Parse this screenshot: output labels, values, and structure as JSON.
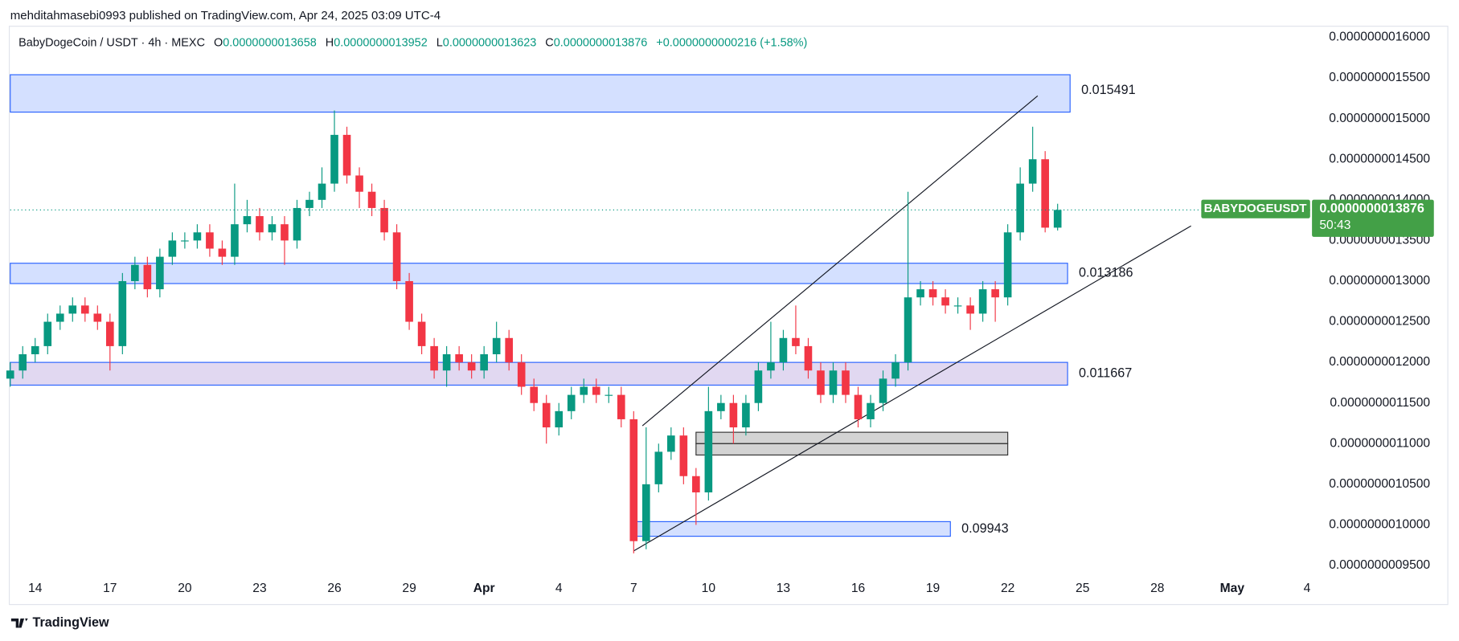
{
  "header": {
    "publisher_line": "mehditahmasebi0993 published on TradingView.com, Apr 24, 2025 03:09 UTC-4"
  },
  "footer": {
    "brand": "TradingView"
  },
  "chart_data": {
    "type": "candlestick",
    "title": "BabyDogeCoin / USDT · 4h · MEXC",
    "ohlc": [
      {
        "name": "O",
        "value_label": "0.0000000013658"
      },
      {
        "name": "H",
        "value_label": "0.0000000013952"
      },
      {
        "name": "L",
        "value_label": "0.0000000013623"
      },
      {
        "name": "C",
        "value_label": "0.0000000013876"
      }
    ],
    "change_label": "+0.0000000000216 (+1.58%)",
    "ticker_label": "BABYDOGEUSDT",
    "last_price_label": "0.0000000013876",
    "countdown_label": "50:43",
    "up_color": "#089981",
    "down_color": "#f23645",
    "label_color": "#43a047",
    "grid": false,
    "x": [
      0,
      0.5,
      1,
      1.5,
      2,
      2.5,
      3,
      3.5,
      4,
      4.5,
      5,
      5.5,
      6,
      6.5,
      7,
      7.5,
      8,
      8.5,
      9,
      9.5,
      10,
      10.5,
      11,
      11.5,
      12,
      12.5,
      13,
      13.5,
      14,
      14.5,
      15,
      15.5,
      16,
      16.5,
      17,
      17.5,
      18,
      18.5,
      19,
      19.5,
      20,
      20.5,
      21,
      21.5,
      22,
      22.5,
      23,
      23.5,
      24,
      24.5,
      25,
      25.5,
      26,
      26.5,
      27,
      27.5,
      28,
      28.5,
      29,
      29.5,
      30,
      30.5,
      31,
      31.5,
      32,
      32.5,
      33,
      33.5,
      34,
      34.5,
      35,
      35.5,
      36,
      36.5,
      37,
      37.5,
      38,
      38.5,
      39,
      39.5,
      40,
      40.5,
      41,
      41.5,
      42
    ],
    "open": [
      1.18e-09,
      1.19e-09,
      1.21e-09,
      1.22e-09,
      1.25e-09,
      1.26e-09,
      1.27e-09,
      1.26e-09,
      1.25e-09,
      1.22e-09,
      1.3e-09,
      1.32e-09,
      1.29e-09,
      1.33e-09,
      1.35e-09,
      1.35e-09,
      1.36e-09,
      1.34e-09,
      1.33e-09,
      1.37e-09,
      1.38e-09,
      1.36e-09,
      1.37e-09,
      1.35e-09,
      1.39e-09,
      1.4e-09,
      1.42e-09,
      1.48e-09,
      1.43e-09,
      1.41e-09,
      1.39e-09,
      1.36e-09,
      1.3e-09,
      1.25e-09,
      1.22e-09,
      1.19e-09,
      1.21e-09,
      1.2e-09,
      1.19e-09,
      1.21e-09,
      1.23e-09,
      1.2e-09,
      1.17e-09,
      1.15e-09,
      1.12e-09,
      1.14e-09,
      1.16e-09,
      1.17e-09,
      1.16e-09,
      1.16e-09,
      1.13e-09,
      9.8e-10,
      1.05e-09,
      1.09e-09,
      1.11e-09,
      1.06e-09,
      1.04e-09,
      1.14e-09,
      1.15e-09,
      1.12e-09,
      1.15e-09,
      1.19e-09,
      1.2e-09,
      1.23e-09,
      1.22e-09,
      1.19e-09,
      1.16e-09,
      1.19e-09,
      1.16e-09,
      1.13e-09,
      1.15e-09,
      1.18e-09,
      1.2e-09,
      1.28e-09,
      1.29e-09,
      1.28e-09,
      1.27e-09,
      1.27e-09,
      1.26e-09,
      1.29e-09,
      1.28e-09,
      1.36e-09,
      1.42e-09,
      1.45e-09,
      1.3658e-09
    ],
    "high": [
      1.2e-09,
      1.22e-09,
      1.23e-09,
      1.26e-09,
      1.27e-09,
      1.28e-09,
      1.28e-09,
      1.27e-09,
      1.26e-09,
      1.31e-09,
      1.33e-09,
      1.33e-09,
      1.34e-09,
      1.36e-09,
      1.36e-09,
      1.37e-09,
      1.37e-09,
      1.35e-09,
      1.42e-09,
      1.4e-09,
      1.39e-09,
      1.38e-09,
      1.38e-09,
      1.4e-09,
      1.41e-09,
      1.44e-09,
      1.51e-09,
      1.49e-09,
      1.44e-09,
      1.42e-09,
      1.4e-09,
      1.37e-09,
      1.31e-09,
      1.26e-09,
      1.23e-09,
      1.22e-09,
      1.22e-09,
      1.21e-09,
      1.22e-09,
      1.25e-09,
      1.24e-09,
      1.21e-09,
      1.18e-09,
      1.16e-09,
      1.15e-09,
      1.17e-09,
      1.18e-09,
      1.18e-09,
      1.17e-09,
      1.17e-09,
      1.14e-09,
      1.12e-09,
      1.1e-09,
      1.12e-09,
      1.12e-09,
      1.07e-09,
      1.17e-09,
      1.16e-09,
      1.16e-09,
      1.16e-09,
      1.2e-09,
      1.25e-09,
      1.24e-09,
      1.27e-09,
      1.23e-09,
      1.2e-09,
      1.2e-09,
      1.2e-09,
      1.17e-09,
      1.16e-09,
      1.19e-09,
      1.21e-09,
      1.41e-09,
      1.3e-09,
      1.3e-09,
      1.29e-09,
      1.28e-09,
      1.28e-09,
      1.3e-09,
      1.3e-09,
      1.37e-09,
      1.44e-09,
      1.49e-09,
      1.46e-09,
      1.3952e-09
    ],
    "low": [
      1.17e-09,
      1.18e-09,
      1.2e-09,
      1.21e-09,
      1.24e-09,
      1.25e-09,
      1.25e-09,
      1.24e-09,
      1.19e-09,
      1.21e-09,
      1.29e-09,
      1.28e-09,
      1.28e-09,
      1.32e-09,
      1.34e-09,
      1.34e-09,
      1.33e-09,
      1.32e-09,
      1.32e-09,
      1.36e-09,
      1.35e-09,
      1.35e-09,
      1.32e-09,
      1.34e-09,
      1.38e-09,
      1.39e-09,
      1.41e-09,
      1.42e-09,
      1.39e-09,
      1.38e-09,
      1.35e-09,
      1.29e-09,
      1.24e-09,
      1.21e-09,
      1.18e-09,
      1.17e-09,
      1.19e-09,
      1.18e-09,
      1.18e-09,
      1.2e-09,
      1.19e-09,
      1.16e-09,
      1.14e-09,
      1.1e-09,
      1.11e-09,
      1.13e-09,
      1.15e-09,
      1.15e-09,
      1.15e-09,
      1.12e-09,
      9.65e-10,
      9.7e-10,
      1.04e-09,
      1.08e-09,
      1.05e-09,
      1e-09,
      1.03e-09,
      1.13e-09,
      1.1e-09,
      1.11e-09,
      1.14e-09,
      1.18e-09,
      1.19e-09,
      1.21e-09,
      1.18e-09,
      1.15e-09,
      1.15e-09,
      1.15e-09,
      1.12e-09,
      1.12e-09,
      1.14e-09,
      1.17e-09,
      1.19e-09,
      1.27e-09,
      1.27e-09,
      1.26e-09,
      1.26e-09,
      1.24e-09,
      1.25e-09,
      1.25e-09,
      1.27e-09,
      1.35e-09,
      1.41e-09,
      1.36e-09,
      1.3623e-09
    ],
    "close": [
      1.19e-09,
      1.21e-09,
      1.22e-09,
      1.25e-09,
      1.26e-09,
      1.27e-09,
      1.26e-09,
      1.25e-09,
      1.22e-09,
      1.3e-09,
      1.32e-09,
      1.29e-09,
      1.33e-09,
      1.35e-09,
      1.35e-09,
      1.36e-09,
      1.34e-09,
      1.33e-09,
      1.37e-09,
      1.38e-09,
      1.36e-09,
      1.37e-09,
      1.35e-09,
      1.39e-09,
      1.4e-09,
      1.42e-09,
      1.48e-09,
      1.43e-09,
      1.41e-09,
      1.39e-09,
      1.36e-09,
      1.3e-09,
      1.25e-09,
      1.22e-09,
      1.19e-09,
      1.21e-09,
      1.2e-09,
      1.19e-09,
      1.21e-09,
      1.23e-09,
      1.2e-09,
      1.17e-09,
      1.15e-09,
      1.12e-09,
      1.14e-09,
      1.16e-09,
      1.17e-09,
      1.16e-09,
      1.16e-09,
      1.13e-09,
      9.8e-10,
      1.05e-09,
      1.09e-09,
      1.11e-09,
      1.06e-09,
      1.04e-09,
      1.14e-09,
      1.15e-09,
      1.12e-09,
      1.15e-09,
      1.19e-09,
      1.2e-09,
      1.23e-09,
      1.22e-09,
      1.19e-09,
      1.16e-09,
      1.19e-09,
      1.16e-09,
      1.13e-09,
      1.15e-09,
      1.18e-09,
      1.2e-09,
      1.28e-09,
      1.29e-09,
      1.28e-09,
      1.27e-09,
      1.27e-09,
      1.26e-09,
      1.29e-09,
      1.28e-09,
      1.36e-09,
      1.42e-09,
      1.45e-09,
      1.3658e-09,
      1.3876e-09
    ],
    "zones": [
      {
        "label": "0.015491",
        "low": 1.508e-09,
        "high": 1.554e-09,
        "x_start": 0,
        "x_end": 42.5,
        "color": "#2962ff"
      },
      {
        "label": "0.013186",
        "low": 1.297e-09,
        "high": 1.322e-09,
        "x_start": 0,
        "x_end": 42.4,
        "color": "#2962ff"
      },
      {
        "label": "0.011667",
        "low": 1.172e-09,
        "high": 1.2e-09,
        "x_start": 0,
        "x_end": 42.4,
        "color": "#673ab7"
      },
      {
        "label": "0.09943",
        "low": 9.86e-10,
        "high": 1.004e-09,
        "x_start": 25,
        "x_end": 37.7,
        "color": "#2962ff"
      },
      {
        "low": 1.1e-09,
        "high": 1.114e-09,
        "x_start": 27.5,
        "x_end": 40,
        "color": "#9e9e9e"
      },
      {
        "low": 1.086e-09,
        "high": 1.1e-09,
        "x_start": 27.5,
        "x_end": 40,
        "color": "#9e9e9e"
      }
    ],
    "trend_lines": [
      {
        "x": [
          25.35,
          41.2
        ],
        "y": [
          1.122e-09,
          1.528e-09
        ]
      },
      {
        "x": [
          25,
          47.35
        ],
        "y": [
          9.68e-10,
          1.368e-09
        ]
      }
    ],
    "xlim": [
      0,
      52.2
    ],
    "ylim": [
      9.34e-10,
      1.6137e-09
    ],
    "xticks": [
      {
        "value": 1,
        "label": "14"
      },
      {
        "value": 4,
        "label": "17"
      },
      {
        "value": 7,
        "label": "20"
      },
      {
        "value": 10,
        "label": "23"
      },
      {
        "value": 13,
        "label": "26"
      },
      {
        "value": 16,
        "label": "29"
      },
      {
        "value": 19,
        "label": "Apr"
      },
      {
        "value": 22,
        "label": "4"
      },
      {
        "value": 25,
        "label": "7"
      },
      {
        "value": 28,
        "label": "10"
      },
      {
        "value": 31,
        "label": "13"
      },
      {
        "value": 34,
        "label": "16"
      },
      {
        "value": 37,
        "label": "19"
      },
      {
        "value": 40,
        "label": "22"
      },
      {
        "value": 43,
        "label": "25"
      },
      {
        "value": 46,
        "label": "28"
      },
      {
        "value": 49,
        "label": "May"
      },
      {
        "value": 52,
        "label": "4"
      }
    ],
    "yticks": [
      {
        "value": 1.6e-09,
        "label": "0.0000000016000"
      },
      {
        "value": 1.55e-09,
        "label": "0.0000000015500"
      },
      {
        "value": 1.5e-09,
        "label": "0.0000000015000"
      },
      {
        "value": 1.45e-09,
        "label": "0.0000000014500"
      },
      {
        "value": 1.4e-09,
        "label": "0.0000000014000"
      },
      {
        "value": 1.35e-09,
        "label": "0.0000000013500"
      },
      {
        "value": 1.3e-09,
        "label": "0.0000000013000"
      },
      {
        "value": 1.25e-09,
        "label": "0.0000000012500"
      },
      {
        "value": 1.2e-09,
        "label": "0.0000000012000"
      },
      {
        "value": 1.15e-09,
        "label": "0.0000000011500"
      },
      {
        "value": 1.1e-09,
        "label": "0.0000000011000"
      },
      {
        "value": 1.05e-09,
        "label": "0.0000000010500"
      },
      {
        "value": 1e-09,
        "label": "0.0000000010000"
      },
      {
        "value": 9.5e-10,
        "label": "0.0000000009500"
      }
    ]
  }
}
